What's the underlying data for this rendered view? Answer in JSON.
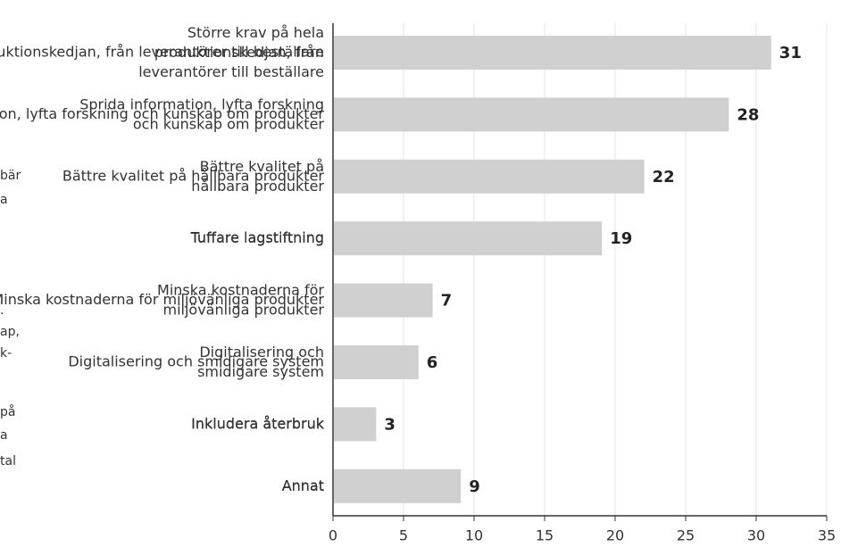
{
  "chart_data": {
    "type": "bar",
    "orientation": "horizontal",
    "categories": [
      "Större krav på hela\nproduktionskedjan, från\nleverantörer till beställare",
      "Sprida information, lyfta forskning\noch kunskap om produkter",
      "Bättre kvalitet på\nhållbara produkter",
      "Tuffare lagstiftning",
      "Minska kostnaderna för\nmiljövänliga produkter",
      "Digitalisering och\nsmidigare system",
      "Inkludera återbruk",
      "Annat"
    ],
    "values": [
      31,
      28,
      22,
      19,
      7,
      6,
      3,
      9
    ],
    "color": "#d0d0d0",
    "xlim": [
      0,
      35
    ],
    "xticks": [
      0,
      5,
      10,
      15,
      20,
      25,
      30,
      35
    ],
    "grid": true,
    "side_text": [
      "bär",
      "a",
      ".",
      "ap,",
      "k-",
      "på",
      "a",
      "tal"
    ]
  }
}
